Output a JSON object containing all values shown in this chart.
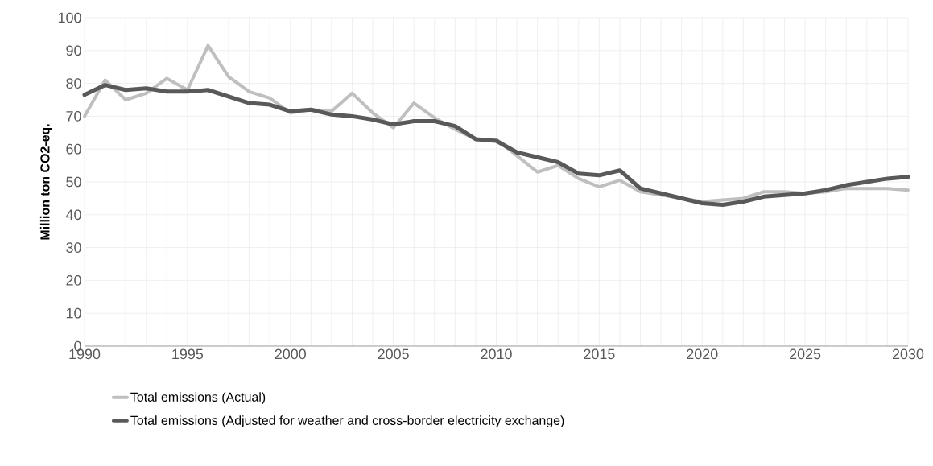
{
  "chart_data": {
    "type": "line",
    "ylabel": "Million ton CO2-eq.",
    "x": [
      1990,
      1991,
      1992,
      1993,
      1994,
      1995,
      1996,
      1997,
      1998,
      1999,
      2000,
      2001,
      2002,
      2003,
      2004,
      2005,
      2006,
      2007,
      2008,
      2009,
      2010,
      2011,
      2012,
      2013,
      2014,
      2015,
      2016,
      2017,
      2018,
      2019,
      2020,
      2021,
      2022,
      2023,
      2024,
      2025,
      2026,
      2027,
      2028,
      2029,
      2030
    ],
    "series": [
      {
        "name": "Total emissions (Actual)",
        "color": "#bfbfbf",
        "values": [
          70,
          81,
          75,
          77,
          81.5,
          78,
          91.5,
          82,
          77.5,
          75.5,
          71,
          72,
          71.5,
          77,
          71,
          66.5,
          74,
          69.5,
          66,
          63,
          63,
          58,
          53,
          55,
          51,
          48.5,
          50.5,
          47,
          46,
          45,
          44,
          44.5,
          45,
          47,
          47,
          46.5,
          47,
          48,
          48,
          48,
          47.5
        ]
      },
      {
        "name": "Total emissions (Adjusted for weather and cross-border electricity exchange)",
        "color": "#595959",
        "values": [
          76.5,
          79.5,
          78,
          78.5,
          77.5,
          77.5,
          78,
          76,
          74,
          73.5,
          71.5,
          72,
          70.5,
          70,
          69,
          67.5,
          68.5,
          68.5,
          67,
          63,
          62.5,
          59,
          57.5,
          56,
          52.5,
          52,
          53.5,
          48,
          46.5,
          45,
          43.5,
          43,
          44,
          45.5,
          46,
          46.5,
          47.5,
          49,
          50,
          51,
          51.5
        ]
      }
    ],
    "xlim": [
      1990,
      2030
    ],
    "xticks": [
      1990,
      1995,
      2000,
      2005,
      2010,
      2015,
      2020,
      2025,
      2030
    ],
    "ylim": [
      0,
      100
    ],
    "yticks": [
      0,
      10,
      20,
      30,
      40,
      50,
      60,
      70,
      80,
      90,
      100
    ],
    "grid": true,
    "legend": "bottom"
  }
}
